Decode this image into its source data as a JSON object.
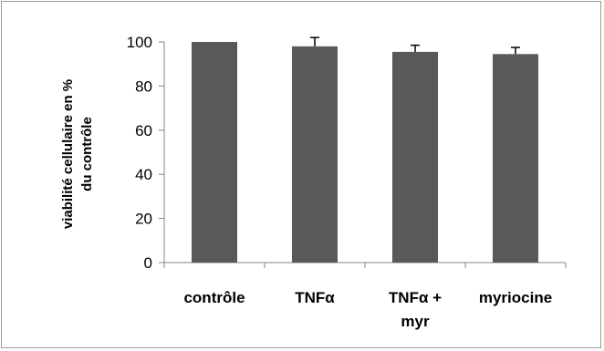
{
  "chart_data": {
    "type": "bar",
    "title": "",
    "categories": [
      [
        "contrôle"
      ],
      [
        "TNFα"
      ],
      [
        "TNFα +",
        "myr"
      ],
      [
        "myriocine"
      ]
    ],
    "values": [
      100,
      98,
      95.5,
      94.5
    ],
    "errors": [
      0,
      4,
      3,
      3
    ],
    "ylabel_lines": [
      "viabilité cellulaire en %",
      "du contrôle"
    ],
    "ylim": [
      0,
      100
    ],
    "yticks": [
      0,
      20,
      40,
      60,
      80,
      100
    ],
    "grid": false,
    "legend": "none",
    "bar_color": "#595959",
    "error_color": "#000000"
  }
}
